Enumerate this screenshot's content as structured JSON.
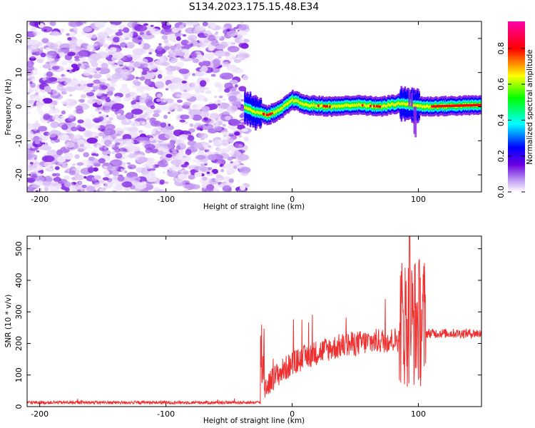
{
  "title": "S134.2023.175.15.48.E34",
  "chart_data": [
    {
      "type": "heatmap",
      "xlabel": "Height of straight line (km)",
      "ylabel": "Frequency (Hz)",
      "xlim": [
        -210,
        150
      ],
      "ylim": [
        -25,
        25
      ],
      "xticks": [
        -200,
        -100,
        0,
        100
      ],
      "yticks": [
        -20,
        -10,
        0,
        10,
        20
      ],
      "colorbar": {
        "label": "Normalized spectral amplitude",
        "range": [
          0.0,
          0.95
        ],
        "ticks": [
          0.0,
          0.2,
          0.4,
          0.6,
          0.8
        ],
        "colormap": [
          "#ffffff",
          "#8a2be2",
          "#0000ff",
          "#00ffff",
          "#00ff00",
          "#ffff00",
          "#ff0000",
          "#ff00ff"
        ]
      },
      "noise_region": [
        -210,
        -38
      ],
      "ridge_center_hz": [
        [
          -38,
          0
        ],
        [
          -30,
          -1.5
        ],
        [
          -20,
          -2.5
        ],
        [
          -10,
          -1
        ],
        [
          0,
          2
        ],
        [
          10,
          0.5
        ],
        [
          30,
          0
        ],
        [
          50,
          0.5
        ],
        [
          70,
          0
        ],
        [
          85,
          1
        ],
        [
          95,
          0.5
        ],
        [
          105,
          0
        ],
        [
          150,
          0.5
        ]
      ],
      "peak_amplitude_regions_km": [
        [
          -25,
          -15
        ],
        [
          20,
          30
        ],
        [
          55,
          70
        ],
        [
          110,
          150
        ]
      ]
    },
    {
      "type": "line",
      "xlabel": "Height of straight line (km)",
      "ylabel": "SNR (10 * v/v)",
      "xlim": [
        -210,
        150
      ],
      "ylim": [
        0,
        540
      ],
      "xticks": [
        -200,
        -100,
        0,
        100
      ],
      "yticks": [
        0,
        100,
        200,
        300,
        400,
        500
      ],
      "series": [
        {
          "color": "#ef3030",
          "values": [
            [
              -210,
              12
            ],
            [
              -150,
              13
            ],
            [
              -100,
              14
            ],
            [
              -50,
              15
            ],
            [
              -25,
              20
            ],
            [
              -22,
              260
            ],
            [
              -20,
              60
            ],
            [
              -10,
              120
            ],
            [
              0,
              140
            ],
            [
              10,
              165
            ],
            [
              20,
              185
            ],
            [
              30,
              195
            ],
            [
              40,
              205
            ],
            [
              50,
              210
            ],
            [
              60,
              215
            ],
            [
              70,
              220
            ],
            [
              80,
              225
            ],
            [
              90,
              200
            ],
            [
              93,
              540
            ],
            [
              97,
              40
            ],
            [
              100,
              400
            ],
            [
              105,
              220
            ],
            [
              120,
              230
            ],
            [
              135,
              235
            ],
            [
              150,
              240
            ]
          ]
        }
      ]
    }
  ]
}
